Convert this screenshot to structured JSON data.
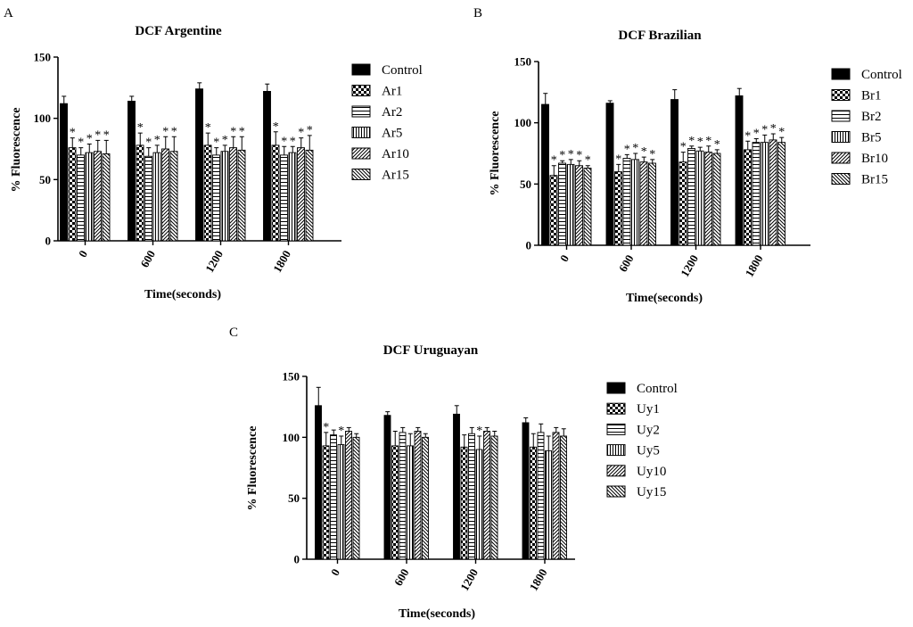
{
  "chart_data": [
    {
      "panel": "A",
      "type": "bar",
      "title": "DCF Argentine",
      "xlabel": "Time(seconds)",
      "ylabel": "% Fluorescence",
      "ylim": [
        0,
        150
      ],
      "yticks": [
        0,
        50,
        100,
        150
      ],
      "categories": [
        "0",
        "600",
        "1200",
        "1800"
      ],
      "series": [
        {
          "name": "Control",
          "values": [
            112,
            114,
            124,
            122
          ],
          "errors": [
            6,
            4,
            5,
            6
          ],
          "significant": [
            false,
            false,
            false,
            false
          ]
        },
        {
          "name": "Ar1",
          "values": [
            76,
            78,
            78,
            78
          ],
          "errors": [
            8,
            10,
            10,
            11
          ],
          "significant": [
            true,
            true,
            true,
            true
          ]
        },
        {
          "name": "Ar2",
          "values": [
            70,
            69,
            70,
            70
          ],
          "errors": [
            6,
            7,
            6,
            7
          ],
          "significant": [
            true,
            true,
            true,
            true
          ]
        },
        {
          "name": "Ar5",
          "values": [
            72,
            72,
            73,
            72
          ],
          "errors": [
            7,
            6,
            5,
            5
          ],
          "significant": [
            true,
            true,
            true,
            true
          ]
        },
        {
          "name": "Ar10",
          "values": [
            73,
            75,
            76,
            76
          ],
          "errors": [
            9,
            10,
            9,
            8
          ],
          "significant": [
            true,
            true,
            true,
            true
          ]
        },
        {
          "name": "Ar15",
          "values": [
            71,
            73,
            74,
            74
          ],
          "errors": [
            11,
            12,
            11,
            12
          ],
          "significant": [
            true,
            true,
            true,
            true
          ]
        }
      ]
    },
    {
      "panel": "B",
      "type": "bar",
      "title": "DCF Brazilian",
      "xlabel": "Time(seconds)",
      "ylabel": "% Fluorescence",
      "ylim": [
        0,
        150
      ],
      "yticks": [
        0,
        50,
        100,
        150
      ],
      "categories": [
        "0",
        "600",
        "1200",
        "1800"
      ],
      "series": [
        {
          "name": "Control",
          "values": [
            115,
            116,
            119,
            122
          ],
          "errors": [
            9,
            2,
            8,
            6
          ],
          "significant": [
            false,
            false,
            false,
            false
          ]
        },
        {
          "name": "Br1",
          "values": [
            57,
            60,
            68,
            78
          ],
          "errors": [
            8,
            6,
            8,
            7
          ],
          "significant": [
            true,
            true,
            true,
            true
          ]
        },
        {
          "name": "Br2",
          "values": [
            67,
            71,
            79,
            84
          ],
          "errors": [
            2,
            3,
            2,
            3
          ],
          "significant": [
            true,
            true,
            true,
            true
          ]
        },
        {
          "name": "Br5",
          "values": [
            66,
            70,
            77,
            84
          ],
          "errors": [
            4,
            5,
            3,
            6
          ],
          "significant": [
            true,
            true,
            true,
            true
          ]
        },
        {
          "name": "Br10",
          "values": [
            65,
            68,
            76,
            86
          ],
          "errors": [
            4,
            4,
            5,
            5
          ],
          "significant": [
            true,
            true,
            true,
            true
          ]
        },
        {
          "name": "Br15",
          "values": [
            63,
            67,
            75,
            84
          ],
          "errors": [
            2,
            3,
            3,
            4
          ],
          "significant": [
            true,
            true,
            true,
            true
          ]
        }
      ]
    },
    {
      "panel": "C",
      "type": "bar",
      "title": "DCF Uruguayan",
      "xlabel": "Time(seconds)",
      "ylabel": "% Fluorescence",
      "ylim": [
        0,
        150
      ],
      "yticks": [
        0,
        50,
        100,
        150
      ],
      "categories": [
        "0",
        "600",
        "1200",
        "1800"
      ],
      "series": [
        {
          "name": "Control",
          "values": [
            126,
            118,
            119,
            112
          ],
          "errors": [
            15,
            3,
            7,
            4
          ],
          "significant": [
            false,
            false,
            false,
            false
          ]
        },
        {
          "name": "Uy1",
          "values": [
            93,
            93,
            92,
            92
          ],
          "errors": [
            11,
            12,
            10,
            11
          ],
          "significant": [
            true,
            false,
            false,
            false
          ]
        },
        {
          "name": "Uy2",
          "values": [
            102,
            104,
            103,
            104
          ],
          "errors": [
            4,
            4,
            5,
            7
          ],
          "significant": [
            false,
            false,
            false,
            false
          ]
        },
        {
          "name": "Uy5",
          "values": [
            94,
            93,
            90,
            89
          ],
          "errors": [
            7,
            10,
            11,
            12
          ],
          "significant": [
            true,
            false,
            true,
            false
          ]
        },
        {
          "name": "Uy10",
          "values": [
            105,
            105,
            105,
            104
          ],
          "errors": [
            3,
            3,
            3,
            4
          ],
          "significant": [
            false,
            false,
            false,
            false
          ]
        },
        {
          "name": "Uy15",
          "values": [
            100,
            100,
            101,
            101
          ],
          "errors": [
            3,
            3,
            4,
            6
          ],
          "significant": [
            false,
            false,
            false,
            false
          ]
        }
      ]
    }
  ],
  "significance_marker": "*"
}
